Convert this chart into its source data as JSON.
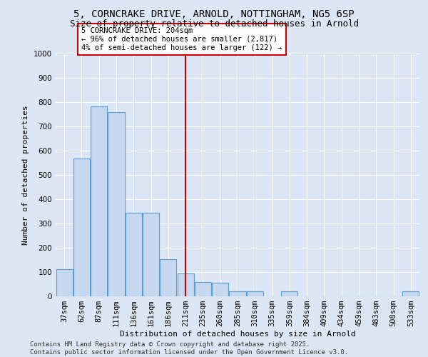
{
  "title1": "5, CORNCRAKE DRIVE, ARNOLD, NOTTINGHAM, NG5 6SP",
  "title2": "Size of property relative to detached houses in Arnold",
  "xlabel": "Distribution of detached houses by size in Arnold",
  "ylabel": "Number of detached properties",
  "bins": [
    "37sqm",
    "62sqm",
    "87sqm",
    "111sqm",
    "136sqm",
    "161sqm",
    "186sqm",
    "211sqm",
    "235sqm",
    "260sqm",
    "285sqm",
    "310sqm",
    "335sqm",
    "359sqm",
    "384sqm",
    "409sqm",
    "434sqm",
    "459sqm",
    "483sqm",
    "508sqm",
    "533sqm"
  ],
  "values": [
    111,
    567,
    783,
    758,
    344,
    344,
    152,
    95,
    58,
    55,
    20,
    20,
    0,
    20,
    0,
    0,
    0,
    0,
    0,
    0,
    20
  ],
  "bar_color": "#c5d8f0",
  "bar_edge_color": "#5a9fd4",
  "vline_x_index": 7,
  "vline_color": "#cc0000",
  "annotation_text": "5 CORNCRAKE DRIVE: 204sqm\n← 96% of detached houses are smaller (2,817)\n4% of semi-detached houses are larger (122) →",
  "annotation_box_color": "#ffffff",
  "annotation_border_color": "#cc0000",
  "ylim": [
    0,
    1000
  ],
  "yticks": [
    0,
    100,
    200,
    300,
    400,
    500,
    600,
    700,
    800,
    900,
    1000
  ],
  "bg_color": "#dce6f5",
  "plot_bg_color": "#dce6f5",
  "grid_color": "#ffffff",
  "footer_text": "Contains HM Land Registry data © Crown copyright and database right 2025.\nContains public sector information licensed under the Open Government Licence v3.0.",
  "title1_fontsize": 10,
  "title2_fontsize": 9,
  "xlabel_fontsize": 8,
  "ylabel_fontsize": 8,
  "tick_fontsize": 7.5,
  "footer_fontsize": 6.5,
  "ann_fontsize": 7.5
}
